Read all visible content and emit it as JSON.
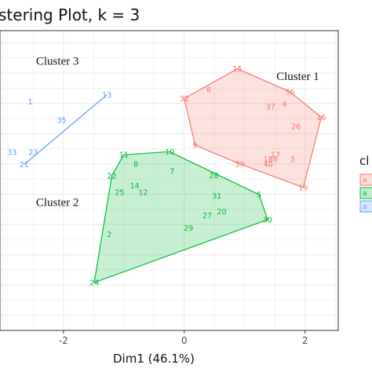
{
  "chart_data": {
    "type": "scatter",
    "title": "stering Plot, k = 3",
    "xlabel": "Dim1 (46.1%)",
    "ylabel": "",
    "xlim": [
      -3.05,
      2.55
    ],
    "ylim": [
      -2.25,
      2.7
    ],
    "xticks": [
      -2,
      0,
      2
    ],
    "xtick_labels": [
      "-2",
      "0",
      "2"
    ],
    "grid": true,
    "legend_title": "cl",
    "legend_placement": "right",
    "legend_key_label": "a",
    "series": [
      {
        "name": "1",
        "color": "#F8766D",
        "fill": "#F8766D",
        "points": [
          {
            "id": "15",
            "x": 0.88,
            "y": 2.07
          },
          {
            "id": "6",
            "x": 0.41,
            "y": 1.73
          },
          {
            "id": "32",
            "x": 0.0,
            "y": 1.58
          },
          {
            "id": "36",
            "x": 1.75,
            "y": 1.69
          },
          {
            "id": "4",
            "x": 1.66,
            "y": 1.49
          },
          {
            "id": "37",
            "x": 1.43,
            "y": 1.44
          },
          {
            "id": "16",
            "x": 2.27,
            "y": 1.27
          },
          {
            "id": "26",
            "x": 1.85,
            "y": 1.12
          },
          {
            "id": "9",
            "x": 0.18,
            "y": 0.81
          },
          {
            "id": "17",
            "x": 1.51,
            "y": 0.65
          },
          {
            "id": "18",
            "x": 1.39,
            "y": 0.58
          },
          {
            "id": "38",
            "x": 1.47,
            "y": 0.58
          },
          {
            "id": "3",
            "x": 1.79,
            "y": 0.58
          },
          {
            "id": "39",
            "x": 0.92,
            "y": 0.5
          },
          {
            "id": "40",
            "x": 1.39,
            "y": 0.5
          },
          {
            "id": "19",
            "x": 1.97,
            "y": 0.11
          }
        ],
        "hull": [
          "15",
          "36",
          "16",
          "19",
          "39",
          "9",
          "32"
        ]
      },
      {
        "name": "2",
        "color": "#00BA38",
        "fill": "#00BA38",
        "points": [
          {
            "id": "10",
            "x": -0.24,
            "y": 0.7
          },
          {
            "id": "11",
            "x": -1.0,
            "y": 0.65
          },
          {
            "id": "8",
            "x": -0.8,
            "y": 0.5
          },
          {
            "id": "7",
            "x": -0.2,
            "y": 0.38
          },
          {
            "id": "22",
            "x": -1.2,
            "y": 0.3
          },
          {
            "id": "28",
            "x": 0.49,
            "y": 0.31
          },
          {
            "id": "14",
            "x": -0.82,
            "y": 0.14
          },
          {
            "id": "25",
            "x": -1.07,
            "y": 0.03
          },
          {
            "id": "12",
            "x": -0.68,
            "y": 0.03
          },
          {
            "id": "31",
            "x": 0.54,
            "y": -0.03
          },
          {
            "id": "5",
            "x": 1.24,
            "y": -0.01
          },
          {
            "id": "20",
            "x": 0.62,
            "y": -0.29
          },
          {
            "id": "27",
            "x": 0.38,
            "y": -0.35
          },
          {
            "id": "30",
            "x": 1.38,
            "y": -0.42
          },
          {
            "id": "29",
            "x": 0.07,
            "y": -0.56
          },
          {
            "id": "2",
            "x": -1.24,
            "y": -0.66
          },
          {
            "id": "24",
            "x": -1.49,
            "y": -1.46
          }
        ],
        "hull": [
          "11",
          "10",
          "5",
          "30",
          "24",
          "22"
        ]
      },
      {
        "name": "3",
        "color": "#619CFF",
        "fill": "#619CFF",
        "points": [
          {
            "id": "13",
            "x": -1.28,
            "y": 1.64
          },
          {
            "id": "1",
            "x": -2.55,
            "y": 1.53
          },
          {
            "id": "35",
            "x": -2.03,
            "y": 1.22
          },
          {
            "id": "33",
            "x": -2.85,
            "y": 0.69
          },
          {
            "id": "23",
            "x": -2.5,
            "y": 0.69
          },
          {
            "id": "21",
            "x": -2.65,
            "y": 0.49
          }
        ],
        "hull": [
          "13",
          "21"
        ]
      }
    ],
    "annotations": [
      {
        "text": "Cluster 3",
        "x": -2.1,
        "y": 2.2
      },
      {
        "text": "Cluster 1",
        "x": 1.88,
        "y": 1.95
      },
      {
        "text": "Cluster 2",
        "x": -2.1,
        "y": -0.13
      }
    ]
  }
}
